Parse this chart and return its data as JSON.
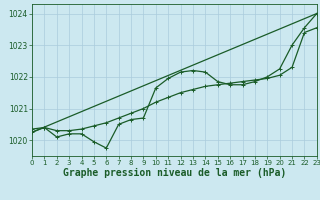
{
  "title": "Graphe pression niveau de la mer (hPa)",
  "bg_color": "#cce8f0",
  "grid_color": "#aaccdd",
  "line_color": "#1a5c28",
  "x_min": 0,
  "x_max": 23,
  "y_min": 1019.5,
  "y_max": 1024.3,
  "y_ticks": [
    1020,
    1021,
    1022,
    1023,
    1024
  ],
  "x_ticks": [
    0,
    1,
    2,
    3,
    4,
    5,
    6,
    7,
    8,
    9,
    10,
    11,
    12,
    13,
    14,
    15,
    16,
    17,
    18,
    19,
    20,
    21,
    22,
    23
  ],
  "series1": [
    [
      0,
      1020.25
    ],
    [
      1,
      1020.4
    ],
    [
      2,
      1020.1
    ],
    [
      3,
      1020.2
    ],
    [
      4,
      1020.2
    ],
    [
      5,
      1019.95
    ],
    [
      6,
      1019.75
    ],
    [
      7,
      1020.5
    ],
    [
      8,
      1020.65
    ],
    [
      9,
      1020.7
    ],
    [
      10,
      1021.65
    ],
    [
      11,
      1021.95
    ],
    [
      12,
      1022.15
    ],
    [
      13,
      1022.2
    ],
    [
      14,
      1022.15
    ],
    [
      15,
      1021.85
    ],
    [
      16,
      1021.75
    ],
    [
      17,
      1021.75
    ],
    [
      18,
      1021.85
    ],
    [
      19,
      1022.0
    ],
    [
      20,
      1022.25
    ],
    [
      21,
      1023.0
    ],
    [
      22,
      1023.55
    ],
    [
      23,
      1024.0
    ]
  ],
  "series2_straight": [
    [
      0,
      1020.25
    ],
    [
      23,
      1024.0
    ]
  ],
  "series3": [
    [
      0,
      1020.35
    ],
    [
      1,
      1020.4
    ],
    [
      2,
      1020.3
    ],
    [
      3,
      1020.3
    ],
    [
      4,
      1020.35
    ],
    [
      5,
      1020.45
    ],
    [
      6,
      1020.55
    ],
    [
      7,
      1020.7
    ],
    [
      8,
      1020.85
    ],
    [
      9,
      1021.0
    ],
    [
      10,
      1021.2
    ],
    [
      11,
      1021.35
    ],
    [
      12,
      1021.5
    ],
    [
      13,
      1021.6
    ],
    [
      14,
      1021.7
    ],
    [
      15,
      1021.75
    ],
    [
      16,
      1021.8
    ],
    [
      17,
      1021.85
    ],
    [
      18,
      1021.9
    ],
    [
      19,
      1021.95
    ],
    [
      20,
      1022.05
    ],
    [
      21,
      1022.3
    ],
    [
      22,
      1023.4
    ],
    [
      23,
      1023.55
    ]
  ],
  "marker_size": 2.5,
  "line_width": 0.9,
  "title_fontsize": 7,
  "tick_fontsize": 5,
  "ylabel_fontsize": 5.5
}
